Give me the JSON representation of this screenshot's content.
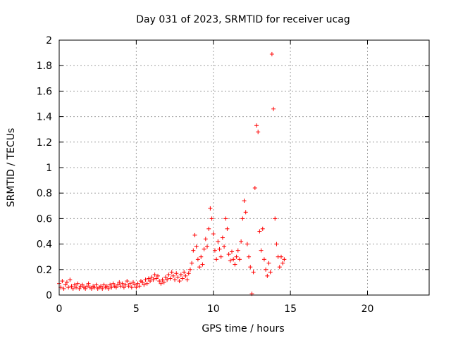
{
  "chart_data": {
    "type": "scatter",
    "title": "Day 031 of 2023, SRMTID for receiver ucag",
    "xlabel": "GPS time / hours",
    "ylabel": "SRMTID / TECUs",
    "xlim": [
      0,
      24
    ],
    "ylim": [
      0,
      2
    ],
    "xticks": [
      0,
      5,
      10,
      15,
      20
    ],
    "xtick_labels": [
      "0",
      "5",
      "10",
      "15",
      "20"
    ],
    "yticks": [
      0,
      0.2,
      0.4,
      0.6,
      0.8,
      1,
      1.2,
      1.4,
      1.6,
      1.8,
      2
    ],
    "ytick_labels": [
      "0",
      "0.2",
      "0.4",
      "0.6",
      "0.8",
      "1",
      "1.2",
      "1.4",
      "1.6",
      "1.8",
      "2"
    ],
    "grid": true,
    "marker": "+",
    "series_color": "#ff0000",
    "series": [
      {
        "name": "SRMTID",
        "points": [
          [
            0.0,
            0.09
          ],
          [
            0.1,
            0.06
          ],
          [
            0.2,
            0.11
          ],
          [
            0.3,
            0.05
          ],
          [
            0.4,
            0.08
          ],
          [
            0.5,
            0.1
          ],
          [
            0.6,
            0.06
          ],
          [
            0.7,
            0.12
          ],
          [
            0.8,
            0.07
          ],
          [
            0.9,
            0.05
          ],
          [
            1.0,
            0.08
          ],
          [
            1.1,
            0.06
          ],
          [
            1.2,
            0.09
          ],
          [
            1.3,
            0.05
          ],
          [
            1.4,
            0.07
          ],
          [
            1.5,
            0.08
          ],
          [
            1.6,
            0.06
          ],
          [
            1.7,
            0.05
          ],
          [
            1.8,
            0.07
          ],
          [
            1.9,
            0.09
          ],
          [
            2.0,
            0.06
          ],
          [
            2.1,
            0.05
          ],
          [
            2.2,
            0.07
          ],
          [
            2.3,
            0.06
          ],
          [
            2.4,
            0.08
          ],
          [
            2.5,
            0.05
          ],
          [
            2.6,
            0.06
          ],
          [
            2.7,
            0.07
          ],
          [
            2.8,
            0.05
          ],
          [
            2.9,
            0.08
          ],
          [
            3.0,
            0.06
          ],
          [
            3.1,
            0.07
          ],
          [
            3.2,
            0.05
          ],
          [
            3.3,
            0.08
          ],
          [
            3.4,
            0.06
          ],
          [
            3.5,
            0.09
          ],
          [
            3.6,
            0.07
          ],
          [
            3.7,
            0.06
          ],
          [
            3.8,
            0.08
          ],
          [
            3.9,
            0.1
          ],
          [
            4.0,
            0.07
          ],
          [
            4.1,
            0.09
          ],
          [
            4.2,
            0.06
          ],
          [
            4.3,
            0.08
          ],
          [
            4.4,
            0.11
          ],
          [
            4.5,
            0.07
          ],
          [
            4.6,
            0.09
          ],
          [
            4.7,
            0.06
          ],
          [
            4.8,
            0.1
          ],
          [
            4.9,
            0.08
          ],
          [
            5.0,
            0.06
          ],
          [
            5.1,
            0.09
          ],
          [
            5.2,
            0.07
          ],
          [
            5.3,
            0.11
          ],
          [
            5.4,
            0.1
          ],
          [
            5.5,
            0.08
          ],
          [
            5.6,
            0.12
          ],
          [
            5.7,
            0.09
          ],
          [
            5.8,
            0.13
          ],
          [
            5.9,
            0.11
          ],
          [
            6.0,
            0.14
          ],
          [
            6.1,
            0.12
          ],
          [
            6.2,
            0.16
          ],
          [
            6.3,
            0.13
          ],
          [
            6.4,
            0.15
          ],
          [
            6.5,
            0.11
          ],
          [
            6.6,
            0.09
          ],
          [
            6.7,
            0.12
          ],
          [
            6.8,
            0.1
          ],
          [
            6.9,
            0.14
          ],
          [
            7.0,
            0.12
          ],
          [
            7.1,
            0.16
          ],
          [
            7.2,
            0.13
          ],
          [
            7.3,
            0.18
          ],
          [
            7.4,
            0.15
          ],
          [
            7.5,
            0.12
          ],
          [
            7.6,
            0.17
          ],
          [
            7.7,
            0.14
          ],
          [
            7.8,
            0.11
          ],
          [
            7.9,
            0.16
          ],
          [
            8.0,
            0.13
          ],
          [
            8.1,
            0.18
          ],
          [
            8.2,
            0.15
          ],
          [
            8.3,
            0.12
          ],
          [
            8.4,
            0.17
          ],
          [
            8.5,
            0.2
          ],
          [
            8.6,
            0.25
          ],
          [
            8.7,
            0.35
          ],
          [
            8.8,
            0.47
          ],
          [
            8.9,
            0.38
          ],
          [
            9.0,
            0.28
          ],
          [
            9.1,
            0.22
          ],
          [
            9.2,
            0.3
          ],
          [
            9.3,
            0.24
          ],
          [
            9.4,
            0.36
          ],
          [
            9.5,
            0.44
          ],
          [
            9.6,
            0.38
          ],
          [
            9.7,
            0.52
          ],
          [
            9.8,
            0.68
          ],
          [
            9.9,
            0.6
          ],
          [
            10.0,
            0.48
          ],
          [
            10.1,
            0.35
          ],
          [
            10.2,
            0.28
          ],
          [
            10.3,
            0.42
          ],
          [
            10.4,
            0.36
          ],
          [
            10.5,
            0.3
          ],
          [
            10.6,
            0.45
          ],
          [
            10.7,
            0.38
          ],
          [
            10.8,
            0.6
          ],
          [
            10.9,
            0.52
          ],
          [
            11.0,
            0.32
          ],
          [
            11.1,
            0.27
          ],
          [
            11.2,
            0.34
          ],
          [
            11.3,
            0.28
          ],
          [
            11.4,
            0.24
          ],
          [
            11.5,
            0.3
          ],
          [
            11.6,
            0.35
          ],
          [
            11.7,
            0.28
          ],
          [
            11.8,
            0.42
          ],
          [
            11.9,
            0.6
          ],
          [
            12.0,
            0.74
          ],
          [
            12.1,
            0.65
          ],
          [
            12.2,
            0.4
          ],
          [
            12.3,
            0.3
          ],
          [
            12.4,
            0.22
          ],
          [
            12.5,
            0.01
          ],
          [
            12.6,
            0.18
          ],
          [
            12.7,
            0.84
          ],
          [
            12.8,
            1.33
          ],
          [
            12.9,
            1.28
          ],
          [
            13.0,
            0.5
          ],
          [
            13.1,
            0.35
          ],
          [
            13.2,
            0.52
          ],
          [
            13.3,
            0.28
          ],
          [
            13.4,
            0.2
          ],
          [
            13.5,
            0.15
          ],
          [
            13.6,
            0.25
          ],
          [
            13.7,
            0.18
          ],
          [
            13.8,
            1.89
          ],
          [
            13.9,
            1.46
          ],
          [
            14.0,
            0.6
          ],
          [
            14.1,
            0.4
          ],
          [
            14.2,
            0.3
          ],
          [
            14.3,
            0.22
          ],
          [
            14.4,
            0.3
          ],
          [
            14.5,
            0.25
          ],
          [
            14.6,
            0.28
          ]
        ]
      }
    ]
  }
}
